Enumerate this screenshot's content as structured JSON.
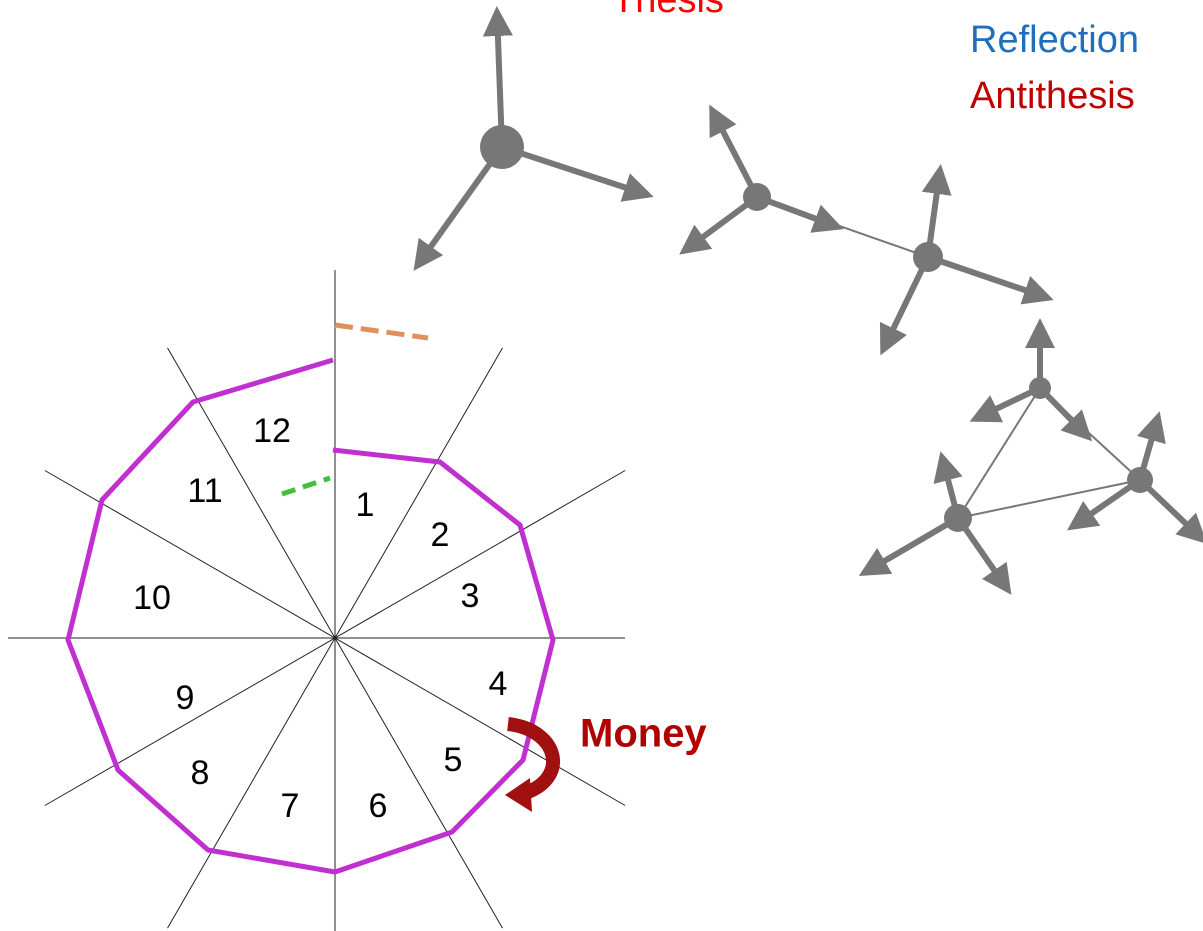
{
  "labels": {
    "thesis": "Thesis",
    "reflection": "Reflection",
    "antithesis": "Antithesis",
    "money": "Money"
  },
  "segments": [
    "1",
    "2",
    "3",
    "4",
    "5",
    "6",
    "7",
    "8",
    "9",
    "10",
    "11",
    "12"
  ]
}
